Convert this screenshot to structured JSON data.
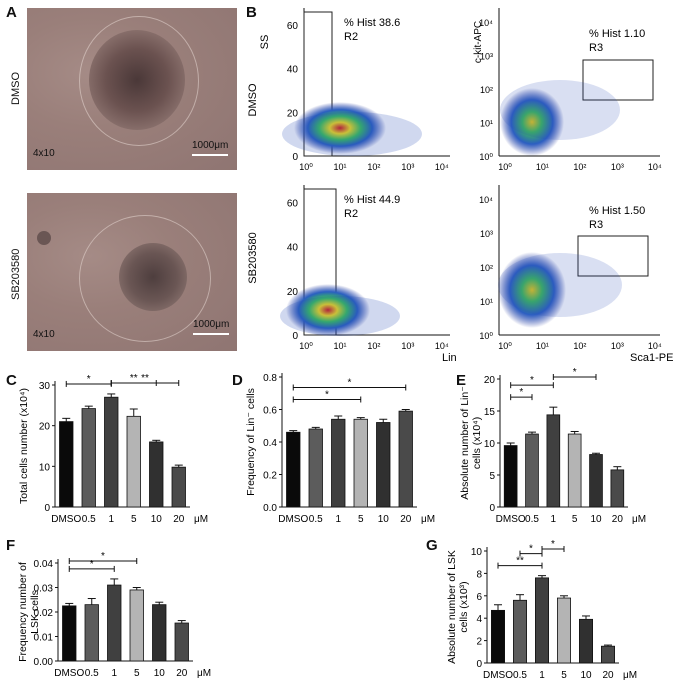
{
  "panels": {
    "A": "A",
    "B": "B",
    "C": "C",
    "D": "D",
    "E": "E",
    "F": "F",
    "G": "G"
  },
  "panel_a": {
    "rows": [
      "DMSO",
      "SB203580"
    ],
    "magnification": "4x10",
    "scale": "1000μm"
  },
  "panel_b": {
    "rows": [
      "DMSO",
      "SB203580"
    ],
    "left_plots": [
      {
        "y_label": "SS",
        "y_ticks": [
          "0",
          "20",
          "40",
          "60"
        ],
        "x_ticks": [
          "10⁰",
          "10¹",
          "10²",
          "10³",
          "10⁴"
        ],
        "stat": "% Hist 38.6",
        "gate": "R2"
      },
      {
        "y_label": "",
        "y_ticks": [
          "0",
          "20",
          "40",
          "60"
        ],
        "x_ticks": [
          "10⁰",
          "10¹",
          "10²",
          "10³",
          "10⁴"
        ],
        "stat": "% Hist 44.9",
        "gate": "R2",
        "x_label": "Lin"
      }
    ],
    "right_plots": [
      {
        "y_label": "c-kit-APC",
        "y_ticks": [
          "10⁰",
          "10¹",
          "10²",
          "10³",
          "10⁴"
        ],
        "x_ticks": [
          "10⁰",
          "10¹",
          "10²",
          "10³",
          "10⁴"
        ],
        "stat": "% Hist 1.10",
        "gate": "R3"
      },
      {
        "y_label": "",
        "y_ticks": [
          "10⁰",
          "10¹",
          "10²",
          "10³",
          "10⁴"
        ],
        "x_ticks": [
          "10⁰",
          "10¹",
          "10²",
          "10³",
          "10⁴"
        ],
        "stat": "% Hist 1.50",
        "gate": "R3",
        "x_label": "Sca1-PE"
      }
    ]
  },
  "chart_data": [
    {
      "id": "C",
      "type": "bar",
      "categories": [
        "DMSO",
        "0.5",
        "1",
        "5",
        "10",
        "20"
      ],
      "unit": "μM",
      "values": [
        21,
        24.2,
        27,
        22.3,
        16,
        9.8
      ],
      "errors": [
        0.8,
        0.6,
        0.8,
        1.8,
        0.4,
        0.5
      ],
      "ylabel": "Total cells number (x10⁴)",
      "ylim": [
        0,
        30
      ],
      "yticks": [
        0,
        10,
        20,
        30
      ],
      "sig": [
        {
          "from": 0,
          "to": 2,
          "label": "*"
        },
        {
          "from": 2,
          "to": 4,
          "label": "**"
        },
        {
          "from": 2,
          "to": 5,
          "label": "**"
        }
      ]
    },
    {
      "id": "D",
      "type": "bar",
      "categories": [
        "DMSO",
        "0.5",
        "1",
        "5",
        "10",
        "20"
      ],
      "unit": "μM",
      "values": [
        0.46,
        0.48,
        0.54,
        0.54,
        0.52,
        0.59
      ],
      "errors": [
        0.01,
        0.01,
        0.02,
        0.01,
        0.02,
        0.01
      ],
      "ylabel": "Frequency of Lin⁻ cells",
      "ylim": [
        0,
        0.8
      ],
      "yticks": [
        0,
        0.2,
        0.4,
        0.6,
        0.8
      ],
      "sig": [
        {
          "from": 0,
          "to": 3,
          "label": "*"
        },
        {
          "from": 0,
          "to": 5,
          "label": "*"
        }
      ]
    },
    {
      "id": "E",
      "type": "bar",
      "categories": [
        "DMSO",
        "0.5",
        "1",
        "5",
        "10",
        "20"
      ],
      "unit": "μM",
      "values": [
        9.6,
        11.4,
        14.4,
        11.4,
        8.2,
        5.8
      ],
      "errors": [
        0.4,
        0.3,
        1.2,
        0.4,
        0.2,
        0.5
      ],
      "ylabel": "Absolute number of Lin⁻ cells (x10⁴)",
      "ylim": [
        0,
        20
      ],
      "yticks": [
        0,
        5,
        10,
        15,
        20
      ],
      "sig": [
        {
          "from": 0,
          "to": 1,
          "label": "*"
        },
        {
          "from": 0,
          "to": 2,
          "label": "*"
        },
        {
          "from": 2,
          "to": 4,
          "label": "*"
        }
      ]
    },
    {
      "id": "F",
      "type": "bar",
      "categories": [
        "DMSO",
        "0.5",
        "1",
        "5",
        "10",
        "20"
      ],
      "unit": "μM",
      "values": [
        0.0225,
        0.023,
        0.031,
        0.029,
        0.023,
        0.0155
      ],
      "errors": [
        0.001,
        0.0025,
        0.0025,
        0.001,
        0.001,
        0.001
      ],
      "ylabel": "Frequency number of LSK cells",
      "ylim": [
        0,
        0.04
      ],
      "yticks": [
        0,
        0.01,
        0.02,
        0.03,
        0.04
      ],
      "sig": [
        {
          "from": 0,
          "to": 2,
          "label": "*"
        },
        {
          "from": 0,
          "to": 3,
          "label": "*"
        }
      ]
    },
    {
      "id": "G",
      "type": "bar",
      "categories": [
        "DMSO",
        "0.5",
        "1",
        "5",
        "10",
        "20"
      ],
      "unit": "μM",
      "values": [
        4.7,
        5.6,
        7.6,
        5.8,
        3.9,
        1.5
      ],
      "errors": [
        0.5,
        0.5,
        0.2,
        0.2,
        0.3,
        0.1
      ],
      "ylabel": "Absolute number of LSK cells (x10³)",
      "ylim": [
        0,
        10
      ],
      "yticks": [
        0,
        2,
        4,
        6,
        8,
        10
      ],
      "sig": [
        {
          "from": 0,
          "to": 2,
          "label": "**"
        },
        {
          "from": 1,
          "to": 2,
          "label": "*"
        },
        {
          "from": 2,
          "to": 3,
          "label": "*"
        }
      ]
    }
  ],
  "colors": {
    "bars": [
      "#0a0a0a",
      "#5c5c5c",
      "#404040",
      "#b4b4b4",
      "#303030",
      "#4a4a4a"
    ],
    "bar_edge": "#111111"
  }
}
